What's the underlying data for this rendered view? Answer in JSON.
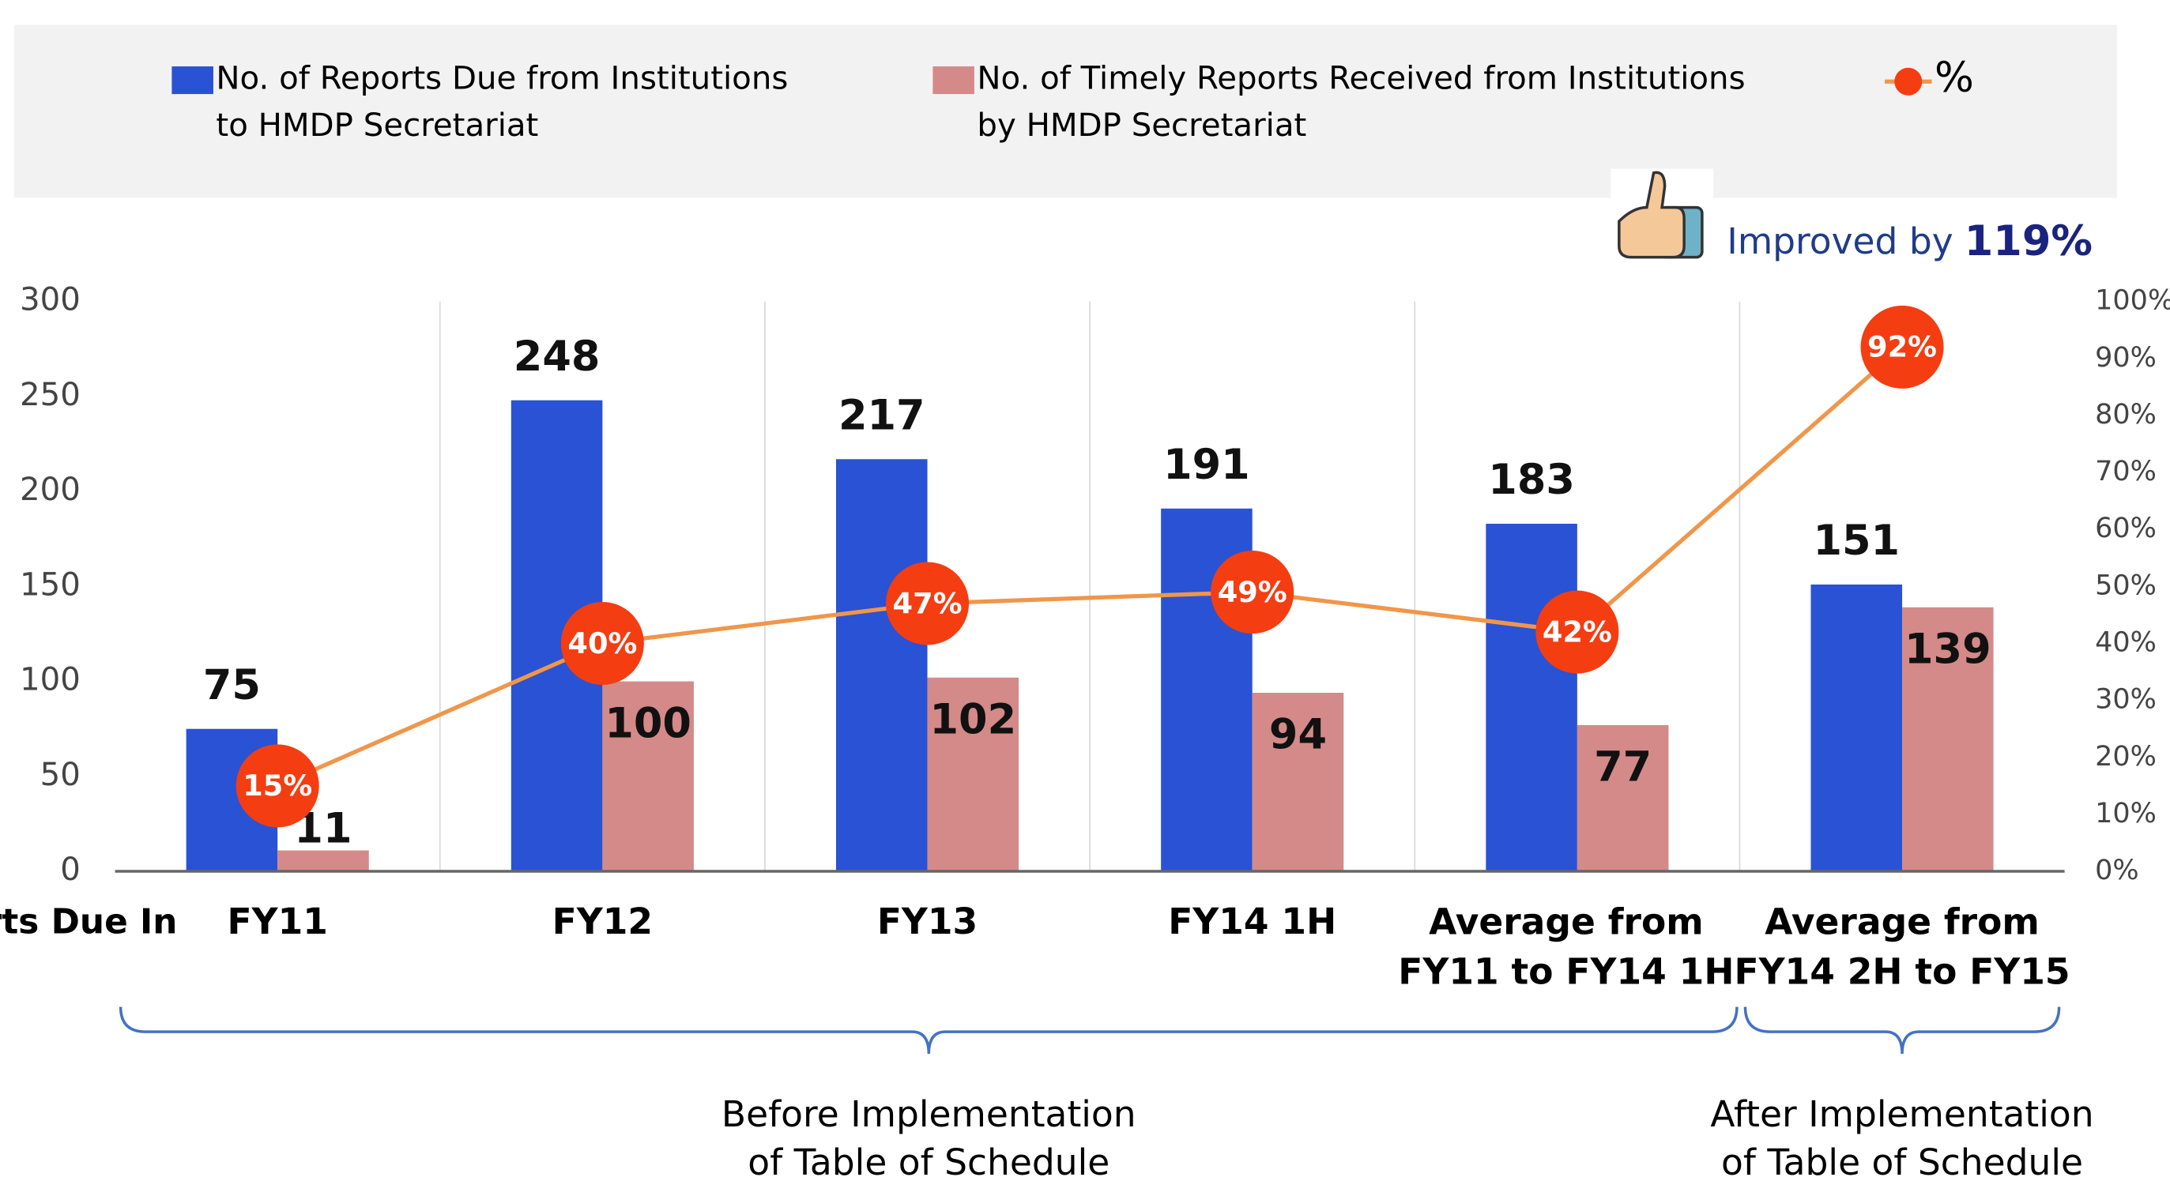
{
  "chart_data": {
    "type": "bar-line",
    "categories": [
      "FY11",
      "FY12",
      "FY13",
      "FY14 1H",
      "Average from\nFY11 to FY14 1H",
      "Average from\nFY14 2H to FY15"
    ],
    "y_axis_label": "No. of Reports Due In",
    "series": [
      {
        "name": "No. of Reports Due from Institutions\nto HMDP Secretariat",
        "color": "#2a52d4",
        "type": "bar",
        "values": [
          75,
          248,
          217,
          191,
          183,
          151
        ]
      },
      {
        "name": "No. of Timely Reports Received  from Institutions\nby HMDP Secretariat",
        "color": "#d48a88",
        "type": "bar",
        "values": [
          11,
          100,
          102,
          94,
          77,
          139
        ]
      },
      {
        "name": "%",
        "color": "#f0964a",
        "marker_color": "#f53d12",
        "type": "line",
        "axis": "y2",
        "values": [
          15,
          40,
          47,
          49,
          42,
          92
        ],
        "value_labels": [
          "15%",
          "40%",
          "47%",
          "49%",
          "42%",
          "92%"
        ]
      }
    ],
    "ylim": [
      0,
      300
    ],
    "yticks": [
      0,
      50,
      100,
      150,
      200,
      250,
      300
    ],
    "y2lim": [
      0,
      100
    ],
    "y2ticks": [
      {
        "value": 0,
        "label": "0%"
      },
      {
        "value": 10,
        "label": "10%"
      },
      {
        "value": 20,
        "label": "20%"
      },
      {
        "value": 30,
        "label": "30%"
      },
      {
        "value": 40,
        "label": "40%"
      },
      {
        "value": 50,
        "label": "50%"
      },
      {
        "value": 60,
        "label": "60%"
      },
      {
        "value": 70,
        "label": "70%"
      },
      {
        "value": 80,
        "label": "80%"
      },
      {
        "value": 90,
        "label": "90%"
      },
      {
        "value": 100,
        "label": "100%"
      }
    ],
    "annotation": {
      "text": "Improved by",
      "highlight": "119%"
    },
    "groups": [
      {
        "label": "Before Implementation\nof Table of Schedule",
        "from": 0,
        "to": 4
      },
      {
        "label": "After Implementation\nof Table of Schedule",
        "from": 5,
        "to": 5
      }
    ],
    "legend": "top"
  }
}
